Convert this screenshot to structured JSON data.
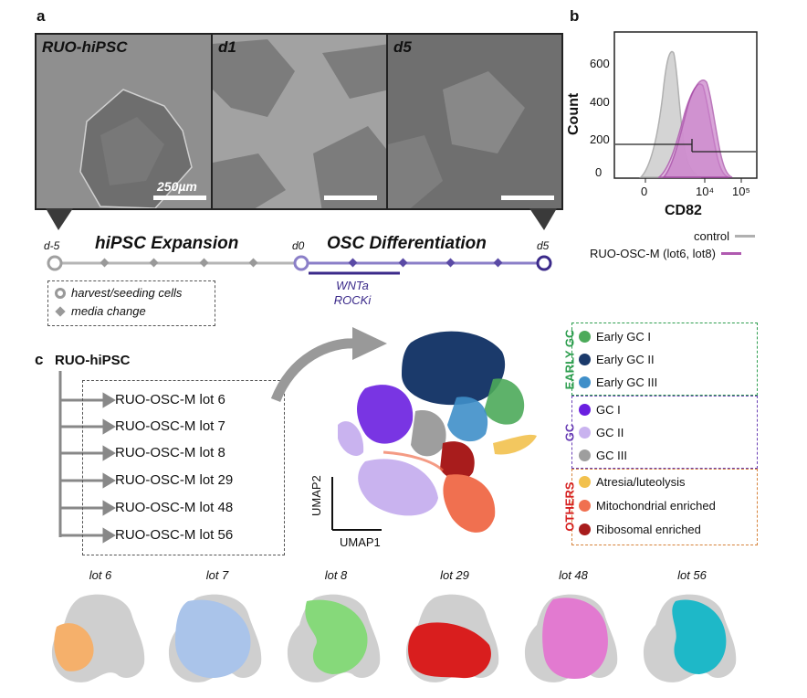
{
  "panels": {
    "a": "a",
    "b": "b",
    "c": "c"
  },
  "images": [
    {
      "label": "RUO-hiPSC",
      "scale": "250µm"
    },
    {
      "label": "d1"
    },
    {
      "label": "d5"
    }
  ],
  "timeline": {
    "expansion_label": "hiPSC Expansion",
    "differentiation_label": "OSC Differentiation",
    "days": [
      "d-5",
      "d0",
      "d5"
    ],
    "treatment": [
      "WNTa",
      "ROCKi"
    ],
    "legend": [
      "harvest/seeding cells",
      "media change"
    ],
    "colors": {
      "expansion": "#b5b5b5",
      "differentiation": "#8b7fc8",
      "dark": "#3b2a8a"
    }
  },
  "flow": {
    "ylabel": "Count",
    "xlabel": "CD82",
    "yticks": [
      "600",
      "400",
      "200",
      "0"
    ],
    "xticks": [
      "0",
      "10⁴",
      "10⁵"
    ],
    "legend": [
      {
        "name": "control",
        "color": "#b0b0b0"
      },
      {
        "name": "RUO-OSC-M (lot6, lot8)",
        "color": "#b05ab0"
      }
    ]
  },
  "lineage": {
    "root": "RUO-hiPSC",
    "lots": [
      "RUO-OSC-M lot 6",
      "RUO-OSC-M lot 7",
      "RUO-OSC-M lot 8",
      "RUO-OSC-M lot 29",
      "RUO-OSC-M lot 48",
      "RUO-OSC-M lot 56"
    ]
  },
  "umap": {
    "xlabel": "UMAP1",
    "ylabel": "UMAP2"
  },
  "clusters": {
    "groups": [
      {
        "title": "EARLY GC",
        "color": "#2e9e4f",
        "items": [
          {
            "name": "Early GC I",
            "color": "#4caa5a"
          },
          {
            "name": "Early GC II",
            "color": "#1b3a6b"
          },
          {
            "name": "Early GC III",
            "color": "#3f8fc9"
          }
        ]
      },
      {
        "title": "GC",
        "color": "#6a3fb5",
        "items": [
          {
            "name": "GC I",
            "color": "#6a1fe0"
          },
          {
            "name": "GC II",
            "color": "#c9b3ef"
          },
          {
            "name": "GC III",
            "color": "#9e9e9e"
          }
        ]
      },
      {
        "title": "OTHERS",
        "color": "#d62020",
        "items": [
          {
            "name": "Atresia/luteolysis",
            "color": "#f2c14e"
          },
          {
            "name": "Mitochondrial enriched",
            "color": "#f07050"
          },
          {
            "name": "Ribosomal enriched",
            "color": "#a81c1c"
          }
        ]
      }
    ]
  },
  "lot_umaps": [
    {
      "title": "lot 6",
      "color": "#f5b06b"
    },
    {
      "title": "lot 7",
      "color": "#aac4ea"
    },
    {
      "title": "lot 8",
      "color": "#86d97a"
    },
    {
      "title": "lot 29",
      "color": "#d91e1e"
    },
    {
      "title": "lot 48",
      "color": "#e27ad0"
    },
    {
      "title": "lot 56",
      "color": "#1eb8c8"
    }
  ]
}
